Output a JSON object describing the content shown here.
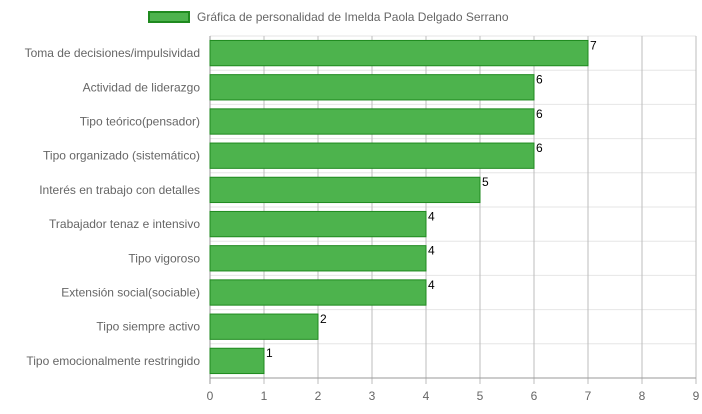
{
  "chart_data": {
    "type": "bar",
    "orientation": "horizontal",
    "title": "",
    "legend": {
      "position": "top",
      "entries": [
        "Gráfica de personalidad de Imelda Paola Delgado Serrano"
      ]
    },
    "categories": [
      "Toma de decisiones/impulsividad",
      "Actividad de liderazgo",
      "Tipo teórico(pensador)",
      "Tipo organizado (sistemático)",
      "Interés en trabajo con detalles",
      "Trabajador tenaz e intensivo",
      "Tipo vigoroso",
      "Extensión social(sociable)",
      "Tipo siempre activo",
      "Tipo emocionalmente restringido"
    ],
    "series": [
      {
        "name": "Gráfica de personalidad de Imelda Paola Delgado Serrano",
        "values": [
          7,
          6,
          6,
          6,
          5,
          4,
          4,
          4,
          2,
          1
        ]
      }
    ],
    "data_labels": [
      "7",
      "6",
      "6",
      "6",
      "5",
      "4",
      "4",
      "4",
      "2",
      "1"
    ],
    "x_ticks": [
      "0",
      "1",
      "2",
      "3",
      "4",
      "5",
      "6",
      "7",
      "8",
      "9"
    ],
    "xlim": [
      0,
      9
    ],
    "grid": true,
    "colors": {
      "bar_fill": "#4db34d",
      "bar_border": "#1f8a1f",
      "grid": "#e0e0e0",
      "axis": "#999999",
      "text": "#666666"
    }
  }
}
